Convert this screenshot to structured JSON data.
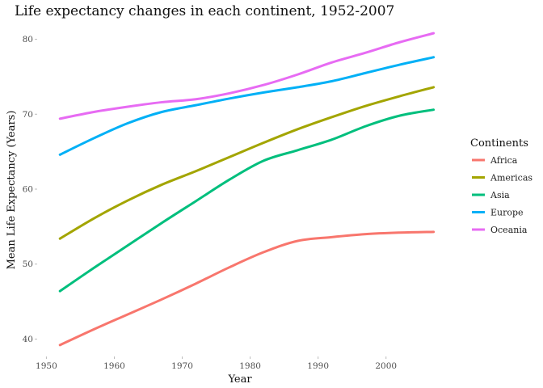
{
  "chart_data": {
    "type": "line",
    "title": "Life expectancy changes in each continent, 1952-2007",
    "xlabel": "Year",
    "ylabel": "Mean Life Expectancy (Years)",
    "xlim": [
      1949,
      2008
    ],
    "ylim": [
      38,
      82
    ],
    "x_ticks": [
      1950,
      1960,
      1970,
      1980,
      1990,
      2000
    ],
    "y_ticks": [
      40,
      50,
      60,
      70,
      80
    ],
    "grid": false,
    "legend": {
      "title": "Continents",
      "placement": "right"
    },
    "x": [
      1952,
      1957,
      1962,
      1967,
      1972,
      1977,
      1982,
      1987,
      1992,
      1997,
      2002,
      2007
    ],
    "series": [
      {
        "name": "Africa",
        "color": "#F8766D",
        "values": [
          39.2,
          41.3,
          43.3,
          45.3,
          47.4,
          49.6,
          51.6,
          53.1,
          53.6,
          54.0,
          54.2,
          54.3
        ]
      },
      {
        "name": "Americas",
        "color": "#A3A500",
        "values": [
          53.4,
          56.1,
          58.5,
          60.6,
          62.4,
          64.3,
          66.2,
          68.0,
          69.6,
          71.1,
          72.4,
          73.6
        ]
      },
      {
        "name": "Asia",
        "color": "#00BF7D",
        "values": [
          46.4,
          49.5,
          52.5,
          55.5,
          58.4,
          61.3,
          63.8,
          65.2,
          66.6,
          68.4,
          69.8,
          70.6
        ]
      },
      {
        "name": "Europe",
        "color": "#00B0F6",
        "values": [
          64.6,
          66.8,
          68.8,
          70.3,
          71.2,
          72.1,
          72.9,
          73.6,
          74.4,
          75.5,
          76.6,
          77.6
        ]
      },
      {
        "name": "Oceania",
        "color": "#E76BF3",
        "values": [
          69.4,
          70.3,
          71.0,
          71.6,
          72.0,
          72.8,
          73.9,
          75.3,
          76.9,
          78.2,
          79.6,
          80.8
        ]
      }
    ]
  }
}
